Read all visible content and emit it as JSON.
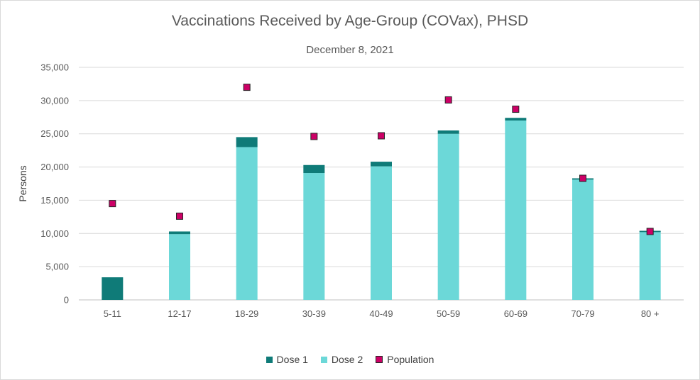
{
  "chart_data": {
    "type": "bar",
    "title": "Vaccinations Received by Age-Group (COVax), PHSD",
    "subtitle": "December 8, 2021",
    "ylabel": "Persons",
    "xlabel": "",
    "ylim": [
      0,
      35000
    ],
    "yticks": [
      0,
      5000,
      10000,
      15000,
      20000,
      25000,
      30000,
      35000
    ],
    "ytick_labels": [
      "0",
      "5,000",
      "10,000",
      "15,000",
      "20,000",
      "25,000",
      "30,000",
      "35,000"
    ],
    "categories": [
      "5-11",
      "12-17",
      "18-29",
      "30-39",
      "40-49",
      "50-59",
      "60-69",
      "70-79",
      "80 +"
    ],
    "stacked": true,
    "series": [
      {
        "name": "Dose 2",
        "type": "bar",
        "color": "#6cd8d8",
        "values": [
          0,
          9900,
          23000,
          19100,
          20100,
          25000,
          27000,
          18100,
          10200
        ]
      },
      {
        "name": "Dose 1",
        "type": "bar",
        "color": "#0f7b78",
        "values": [
          3400,
          400,
          1500,
          1200,
          700,
          500,
          400,
          200,
          200
        ]
      },
      {
        "name": "Population",
        "type": "marker",
        "color": "#cc0066",
        "values": [
          14500,
          12600,
          32000,
          24600,
          24700,
          30100,
          28700,
          18300,
          10300
        ]
      }
    ],
    "legend": {
      "position": "bottom",
      "order": [
        "Dose 1",
        "Dose 2",
        "Population"
      ]
    },
    "grid": true
  }
}
